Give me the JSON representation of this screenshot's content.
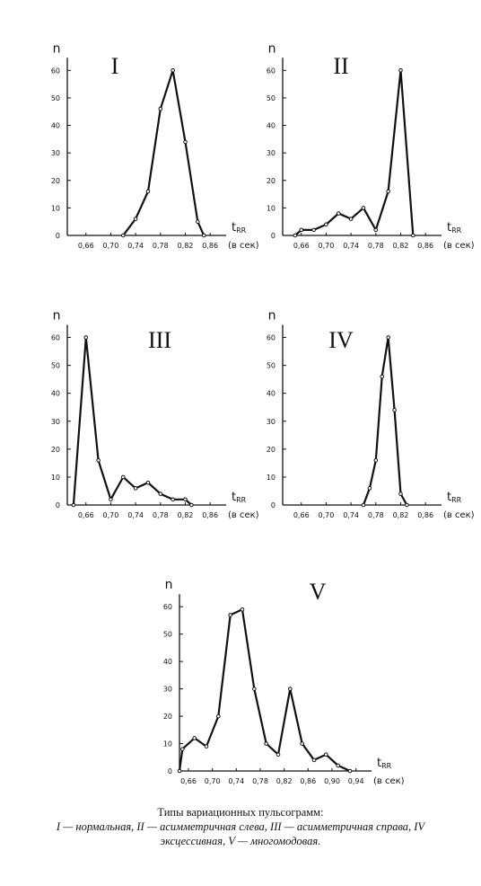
{
  "chart_data": [
    {
      "type": "line",
      "title": "I",
      "ylabel": "n",
      "xlabel": "t",
      "xlabel_sub": "RR",
      "xunit": "(в сек)",
      "x": [
        0.72,
        0.74,
        0.76,
        0.78,
        0.8,
        0.82,
        0.84,
        0.85
      ],
      "values": [
        0,
        6,
        16,
        46,
        60,
        34,
        5,
        0
      ],
      "xlim": [
        0.63,
        0.88
      ],
      "ylim": [
        0,
        65
      ],
      "xticks": [
        {
          "value": 0.66,
          "label": "0,66"
        },
        {
          "value": 0.7,
          "label": "0,70"
        },
        {
          "value": 0.74,
          "label": "0,74"
        },
        {
          "value": 0.78,
          "label": "0,78"
        },
        {
          "value": 0.82,
          "label": "0,82"
        },
        {
          "value": 0.86,
          "label": "0,86"
        }
      ],
      "yticks": [
        0,
        10,
        20,
        30,
        40,
        50,
        60
      ],
      "color": "#111"
    },
    {
      "type": "line",
      "title": "II",
      "ylabel": "n",
      "xlabel": "t",
      "xlabel_sub": "RR",
      "xunit": "(в сек)",
      "x": [
        0.65,
        0.66,
        0.68,
        0.7,
        0.72,
        0.74,
        0.76,
        0.78,
        0.8,
        0.82,
        0.84
      ],
      "values": [
        0,
        2,
        2,
        4,
        8,
        6,
        10,
        2,
        16,
        60,
        0
      ],
      "xlim": [
        0.63,
        0.88
      ],
      "ylim": [
        0,
        65
      ],
      "xticks": [
        {
          "value": 0.66,
          "label": "0,66"
        },
        {
          "value": 0.7,
          "label": "0,70"
        },
        {
          "value": 0.74,
          "label": "0,74"
        },
        {
          "value": 0.78,
          "label": "0,78"
        },
        {
          "value": 0.82,
          "label": "0,82"
        },
        {
          "value": 0.86,
          "label": "0,86"
        }
      ],
      "yticks": [
        0,
        10,
        20,
        30,
        40,
        50,
        60
      ],
      "color": "#111"
    },
    {
      "type": "line",
      "title": "III",
      "ylabel": "n",
      "xlabel": "t",
      "xlabel_sub": "RR",
      "xunit": "(в сек)",
      "x": [
        0.64,
        0.66,
        0.68,
        0.7,
        0.72,
        0.74,
        0.76,
        0.78,
        0.8,
        0.82,
        0.83
      ],
      "values": [
        0,
        60,
        16,
        2,
        10,
        6,
        8,
        4,
        2,
        2,
        0
      ],
      "xlim": [
        0.63,
        0.88
      ],
      "ylim": [
        0,
        65
      ],
      "xticks": [
        {
          "value": 0.66,
          "label": "0,66"
        },
        {
          "value": 0.7,
          "label": "0,70"
        },
        {
          "value": 0.74,
          "label": "0,74"
        },
        {
          "value": 0.78,
          "label": "0,78"
        },
        {
          "value": 0.82,
          "label": "0,82"
        },
        {
          "value": 0.86,
          "label": "0,86"
        }
      ],
      "yticks": [
        0,
        10,
        20,
        30,
        40,
        50,
        60
      ],
      "color": "#111"
    },
    {
      "type": "line",
      "title": "IV",
      "ylabel": "n",
      "xlabel": "t",
      "xlabel_sub": "RR",
      "xunit": "(в сек)",
      "x": [
        0.76,
        0.77,
        0.78,
        0.79,
        0.8,
        0.81,
        0.82,
        0.83
      ],
      "values": [
        0,
        6,
        16,
        46,
        60,
        34,
        4,
        0
      ],
      "xlim": [
        0.63,
        0.88
      ],
      "ylim": [
        0,
        65
      ],
      "xticks": [
        {
          "value": 0.66,
          "label": "0,66"
        },
        {
          "value": 0.7,
          "label": "0,70"
        },
        {
          "value": 0.74,
          "label": "0,74"
        },
        {
          "value": 0.78,
          "label": "0,78"
        },
        {
          "value": 0.82,
          "label": "0,82"
        },
        {
          "value": 0.86,
          "label": "0,86"
        }
      ],
      "yticks": [
        0,
        10,
        20,
        30,
        40,
        50,
        60
      ],
      "color": "#111"
    },
    {
      "type": "line",
      "title": "V",
      "ylabel": "n",
      "xlabel": "t",
      "xlabel_sub": "RR",
      "xunit": "(в сек)",
      "x": [
        0.645,
        0.65,
        0.67,
        0.69,
        0.71,
        0.73,
        0.75,
        0.77,
        0.79,
        0.81,
        0.83,
        0.85,
        0.87,
        0.89,
        0.91,
        0.93
      ],
      "values": [
        0,
        8,
        12,
        9,
        20,
        57,
        59,
        30,
        10,
        6,
        30,
        10,
        4,
        6,
        2,
        0
      ],
      "xlim": [
        0.645,
        0.96
      ],
      "ylim": [
        0,
        65
      ],
      "xticks": [
        {
          "value": 0.66,
          "label": "0,66"
        },
        {
          "value": 0.7,
          "label": "0,70"
        },
        {
          "value": 0.74,
          "label": "0,74"
        },
        {
          "value": 0.78,
          "label": "0,78"
        },
        {
          "value": 0.82,
          "label": "0,82"
        },
        {
          "value": 0.86,
          "label": "0,86"
        },
        {
          "value": 0.9,
          "label": "0,90"
        },
        {
          "value": 0.94,
          "label": "0,94"
        }
      ],
      "yticks": [
        0,
        10,
        20,
        30,
        40,
        50,
        60
      ],
      "color": "#111"
    }
  ],
  "caption": {
    "title": "Типы вариационных пульсограмм:",
    "lines": [
      "I — нормальная, II — асимметричная слева, III — асимметричная справа, IV",
      "эксцессивная, V — многомодовая."
    ]
  }
}
